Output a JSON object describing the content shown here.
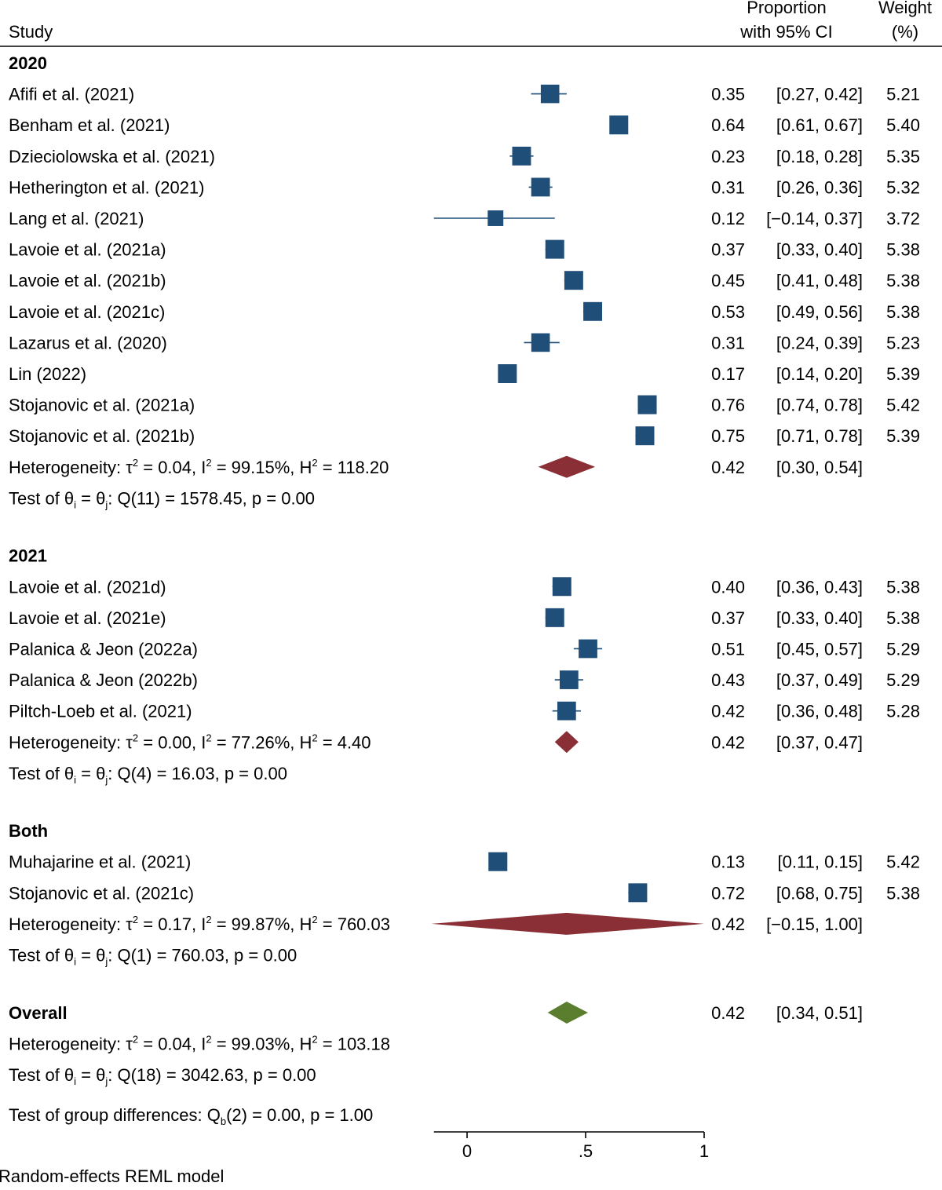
{
  "chart_data": {
    "type": "forest",
    "header": {
      "study": "Study",
      "proportion_line1": "Proportion",
      "proportion_line2": "with 95% CI",
      "weight_line1": "Weight",
      "weight_line2": "(%)"
    },
    "xlim": [
      -0.14,
      1.0
    ],
    "xticks": [
      {
        "value": 0,
        "label": "0"
      },
      {
        "value": 0.5,
        "label": ".5"
      },
      {
        "value": 1,
        "label": "1"
      }
    ],
    "colors": {
      "study_marker": "#1f4e79",
      "ci_line": "#1f4e79",
      "subgroup_diamond": "#8b2f36",
      "overall_diamond": "#5a7d2e"
    },
    "groups": [
      {
        "name": "2020",
        "studies": [
          {
            "label": "Afifi et al. (2021)",
            "est": 0.35,
            "lo": 0.27,
            "hi": 0.42,
            "ci_text": "[0.27,  0.42]",
            "weight": 5.21
          },
          {
            "label": "Benham et al. (2021)",
            "est": 0.64,
            "lo": 0.61,
            "hi": 0.67,
            "ci_text": "[0.61,  0.67]",
            "weight": 5.4
          },
          {
            "label": "Dzieciolowska et al. (2021)",
            "est": 0.23,
            "lo": 0.18,
            "hi": 0.28,
            "ci_text": "[0.18,  0.28]",
            "weight": 5.35
          },
          {
            "label": "Hetherington et al. (2021)",
            "est": 0.31,
            "lo": 0.26,
            "hi": 0.36,
            "ci_text": "[0.26,  0.36]",
            "weight": 5.32
          },
          {
            "label": "Lang et al. (2021)",
            "est": 0.12,
            "lo": -0.14,
            "hi": 0.37,
            "ci_text": "[−0.14,  0.37]",
            "weight": 3.72
          },
          {
            "label": "Lavoie et al. (2021a)",
            "est": 0.37,
            "lo": 0.33,
            "hi": 0.4,
            "ci_text": "[0.33,  0.40]",
            "weight": 5.38
          },
          {
            "label": "Lavoie et al. (2021b)",
            "est": 0.45,
            "lo": 0.41,
            "hi": 0.48,
            "ci_text": "[0.41,  0.48]",
            "weight": 5.38
          },
          {
            "label": "Lavoie et al. (2021c)",
            "est": 0.53,
            "lo": 0.49,
            "hi": 0.56,
            "ci_text": "[0.49,  0.56]",
            "weight": 5.38
          },
          {
            "label": "Lazarus et al. (2020)",
            "est": 0.31,
            "lo": 0.24,
            "hi": 0.39,
            "ci_text": "[0.24,  0.39]",
            "weight": 5.23
          },
          {
            "label": "Lin (2022)",
            "est": 0.17,
            "lo": 0.14,
            "hi": 0.2,
            "ci_text": "[0.14,  0.20]",
            "weight": 5.39
          },
          {
            "label": "Stojanovic et al. (2021a)",
            "est": 0.76,
            "lo": 0.74,
            "hi": 0.78,
            "ci_text": "[0.74,  0.78]",
            "weight": 5.42
          },
          {
            "label": "Stojanovic et al. (2021b)",
            "est": 0.75,
            "lo": 0.71,
            "hi": 0.78,
            "ci_text": "[0.71,  0.78]",
            "weight": 5.39
          }
        ],
        "pooled": {
          "est": 0.42,
          "lo": 0.3,
          "hi": 0.54,
          "ci_text": "[0.30,  0.54]"
        },
        "heterogeneity": {
          "tau2": "0.04",
          "i2": "99.15%",
          "h2": "118.20"
        },
        "test": {
          "df": "11",
          "q": "1578.45",
          "p": "0.00"
        }
      },
      {
        "name": "2021",
        "studies": [
          {
            "label": "Lavoie et al. (2021d)",
            "est": 0.4,
            "lo": 0.36,
            "hi": 0.43,
            "ci_text": "[0.36,  0.43]",
            "weight": 5.38
          },
          {
            "label": "Lavoie et al. (2021e)",
            "est": 0.37,
            "lo": 0.33,
            "hi": 0.4,
            "ci_text": "[0.33,  0.40]",
            "weight": 5.38
          },
          {
            "label": "Palanica & Jeon (2022a)",
            "est": 0.51,
            "lo": 0.45,
            "hi": 0.57,
            "ci_text": "[0.45,  0.57]",
            "weight": 5.29
          },
          {
            "label": "Palanica & Jeon (2022b)",
            "est": 0.43,
            "lo": 0.37,
            "hi": 0.49,
            "ci_text": "[0.37,  0.49]",
            "weight": 5.29
          },
          {
            "label": "Piltch-Loeb et al. (2021)",
            "est": 0.42,
            "lo": 0.36,
            "hi": 0.48,
            "ci_text": "[0.36,  0.48]",
            "weight": 5.28
          }
        ],
        "pooled": {
          "est": 0.42,
          "lo": 0.37,
          "hi": 0.47,
          "ci_text": "[0.37,  0.47]"
        },
        "heterogeneity": {
          "tau2": "0.00",
          "i2": "77.26%",
          "h2": "4.40"
        },
        "test": {
          "df": "4",
          "q": "16.03",
          "p": "0.00"
        }
      },
      {
        "name": "Both",
        "studies": [
          {
            "label": "Muhajarine et al. (2021)",
            "est": 0.13,
            "lo": 0.11,
            "hi": 0.15,
            "ci_text": "[0.11,  0.15]",
            "weight": 5.42
          },
          {
            "label": "Stojanovic et al. (2021c)",
            "est": 0.72,
            "lo": 0.68,
            "hi": 0.75,
            "ci_text": "[0.68,  0.75]",
            "weight": 5.38
          }
        ],
        "pooled": {
          "est": 0.42,
          "lo": -0.15,
          "hi": 1.0,
          "ci_text": "[−0.15,  1.00]"
        },
        "heterogeneity": {
          "tau2": "0.17",
          "i2": "99.87%",
          "h2": "760.03"
        },
        "test": {
          "df": "1",
          "q": "760.03",
          "p": "0.00"
        }
      }
    ],
    "overall": {
      "label": "Overall",
      "est": 0.42,
      "lo": 0.34,
      "hi": 0.51,
      "ci_text": "[0.34,  0.51]",
      "heterogeneity": {
        "tau2": "0.04",
        "i2": "99.03%",
        "h2": "103.18"
      },
      "test": {
        "df": "18",
        "q": "3042.63",
        "p": "0.00"
      }
    },
    "group_test": {
      "df": "2",
      "q": "0.00",
      "p": "1.00"
    },
    "footnote": "Random-effects REML model"
  }
}
